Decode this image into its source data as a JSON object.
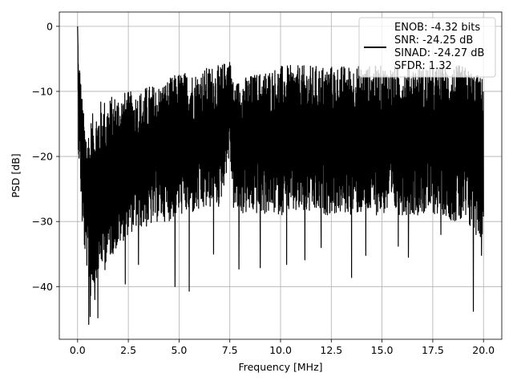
{
  "chart_data": {
    "type": "line",
    "title": "",
    "xlabel": "Frequency [MHz]",
    "ylabel": "PSD [dB]",
    "xlim": [
      -0.9,
      20.9
    ],
    "ylim": [
      -48.1,
      2.2
    ],
    "x_ticks": [
      0.0,
      2.5,
      5.0,
      7.5,
      10.0,
      12.5,
      15.0,
      17.5,
      20.0
    ],
    "x_tick_labels": [
      "0.0",
      "2.5",
      "5.0",
      "7.5",
      "10.0",
      "12.5",
      "15.0",
      "17.5",
      "20.0"
    ],
    "y_ticks": [
      0,
      -10,
      -20,
      -30,
      -40
    ],
    "y_tick_labels": [
      "0",
      "−10",
      "−20",
      "−30",
      "−40"
    ],
    "grid": true,
    "line_color": "#000000",
    "legend": {
      "placement": "upper right",
      "entries": [
        "ENOB: -4.32 bits",
        "SNR: -24.25 dB",
        "SINAD: -24.27 dB",
        "SFDR: 1.32"
      ]
    },
    "series": [
      {
        "x": [
          0.0,
          0.05,
          0.1,
          0.2,
          0.35,
          0.5,
          0.65,
          0.8,
          1.0,
          1.2,
          1.5,
          2.0,
          2.5,
          3.0,
          3.5,
          4.0,
          4.5,
          5.0,
          5.5,
          6.0,
          6.5,
          7.0,
          7.5,
          7.7,
          8.0,
          9.0,
          10.0,
          11.0,
          12.0,
          13.0,
          14.0,
          15.0,
          16.0,
          17.0,
          18.0,
          19.0,
          19.5,
          20.0
        ],
        "y": [
          0.0,
          -14,
          -10,
          -19,
          -25,
          -27,
          -29,
          -28,
          -27,
          -26,
          -25,
          -24,
          -22,
          -21,
          -20,
          -19,
          -19,
          -18,
          -18,
          -17,
          -17,
          -17,
          -9,
          -17,
          -17,
          -17,
          -17,
          -17,
          -17,
          -17,
          -17,
          -17,
          -17,
          -17,
          -17,
          -17,
          -16,
          -17
        ],
        "upper": [
          0.0,
          -6,
          -6,
          -10,
          -15,
          -16,
          -14,
          -13,
          -12,
          -11,
          -11,
          -10,
          -10,
          -10,
          -9,
          -9,
          -8,
          -7,
          -7,
          -7,
          -6,
          -6,
          -5,
          -9,
          -8,
          -7,
          -6,
          -6,
          -6,
          -6,
          -6,
          -6,
          -6,
          -6,
          -6,
          -6,
          -7,
          -8
        ],
        "lower": [
          0.0,
          -22,
          -20,
          -30,
          -35,
          -38,
          -42,
          -40,
          -38,
          -37,
          -36,
          -34,
          -32,
          -31,
          -31,
          -30,
          -30,
          -29,
          -29,
          -29,
          -28,
          -28,
          -20,
          -29,
          -29,
          -29,
          -29,
          -29,
          -29,
          -29,
          -29,
          -29,
          -29,
          -29,
          -29,
          -31,
          -32,
          -33
        ],
        "dips": [
          [
            0.55,
            -45.8
          ],
          [
            0.62,
            -44.6
          ],
          [
            1.0,
            -44.8
          ],
          [
            0.85,
            -42.0
          ],
          [
            2.35,
            -39.6
          ],
          [
            4.8,
            -40.0
          ],
          [
            5.5,
            -40.7
          ],
          [
            3.0,
            -36.6
          ],
          [
            7.95,
            -37.3
          ],
          [
            9.0,
            -37.1
          ],
          [
            13.5,
            -38.6
          ],
          [
            19.5,
            -43.8
          ],
          [
            1.35,
            -37.4
          ],
          [
            6.7,
            -35.0
          ],
          [
            11.2,
            -35.9
          ],
          [
            14.2,
            -35.2
          ],
          [
            16.3,
            -35.5
          ],
          [
            19.9,
            -35.2
          ],
          [
            15.8,
            -33.8
          ],
          [
            10.3,
            -36.6
          ],
          [
            12.0,
            -34.0
          ],
          [
            17.9,
            -32.0
          ]
        ]
      }
    ]
  }
}
